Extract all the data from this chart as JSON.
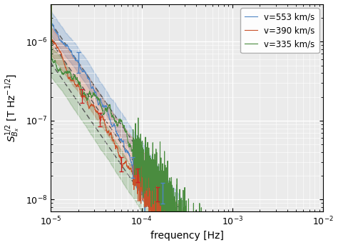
{
  "xlabel": "frequency [Hz]",
  "ylabel": "$S_{B_x}^{1/2}$ [T Hz$^{-1/2}$]",
  "xlim": [
    1e-05,
    0.01
  ],
  "ylim": [
    7e-09,
    3e-06
  ],
  "legend_labels": [
    "v=553 km/s",
    "v=390 km/s",
    "v=335 km/s"
  ],
  "line_colors": [
    "#4f86c6",
    "#c8522a",
    "#4a8c3f"
  ],
  "shade_alpha": 0.25,
  "shade_f_max": 0.0003,
  "dashed_color": "#555555",
  "figsize": [
    4.74,
    3.43
  ],
  "dpi": 100,
  "slope": -1.67,
  "amp_blue": 5.5e-07,
  "amp_orange": 3.2e-07,
  "amp_green": 1.8e-07,
  "f0": 2e-05
}
